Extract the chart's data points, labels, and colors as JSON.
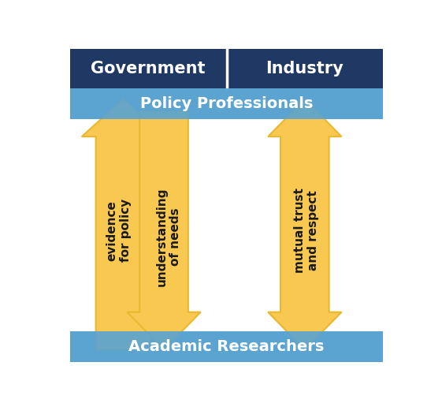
{
  "bg_color": "#ffffff",
  "dark_blue": "#1f3864",
  "light_blue": "#5ba3d0",
  "arrow_color": "#f9c851",
  "arrow_edge": "#e8b830",
  "policy_label": "Policy Professionals",
  "academic_label": "Academic Researchers",
  "gov_label": "Government",
  "industry_label": "Industry",
  "left_up_label": "evidence\nfor policy",
  "left_down_label": "understanding\nof needs",
  "right_label": "mutual trust\nand respect",
  "label_color": "#ffffff",
  "arrow_text_color": "#1a1a1a"
}
